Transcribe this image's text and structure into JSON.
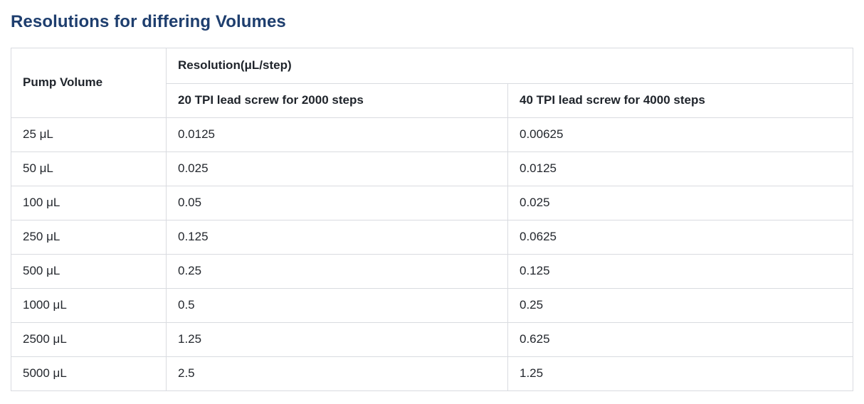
{
  "page": {
    "title": "Resolutions for differing Volumes"
  },
  "colors": {
    "title_color": "#1e3e6e",
    "border_color": "#d9dbe0",
    "header_text_color": "#1f242b",
    "body_text_color": "#23272d",
    "background": "#ffffff"
  },
  "table": {
    "header": {
      "pump_volume": "Pump Volume",
      "resolution_group": "Resolution(μL/step)",
      "col_20tpi": "20 TPI lead screw for 2000 steps",
      "col_40tpi": "40 TPI lead screw for 4000 steps"
    },
    "rows": [
      {
        "volume": "25 μL",
        "res_20tpi": "0.0125",
        "res_40tpi": "0.00625"
      },
      {
        "volume": "50 μL",
        "res_20tpi": "0.025",
        "res_40tpi": "0.0125"
      },
      {
        "volume": "100 μL",
        "res_20tpi": "0.05",
        "res_40tpi": "0.025"
      },
      {
        "volume": "250 μL",
        "res_20tpi": "0.125",
        "res_40tpi": "0.0625"
      },
      {
        "volume": "500 μL",
        "res_20tpi": "0.25",
        "res_40tpi": "0.125"
      },
      {
        "volume": "1000 μL",
        "res_20tpi": "0.5",
        "res_40tpi": "0.25"
      },
      {
        "volume": "2500 μL",
        "res_20tpi": "1.25",
        "res_40tpi": "0.625"
      },
      {
        "volume": "5000 μL",
        "res_20tpi": "2.5",
        "res_40tpi": "1.25"
      }
    ]
  }
}
